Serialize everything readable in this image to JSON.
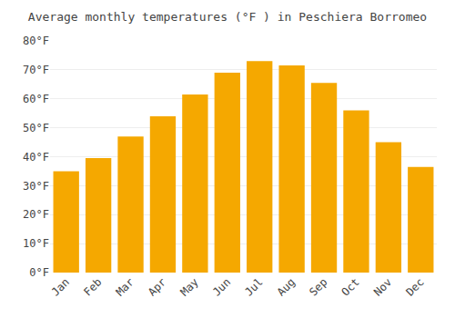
{
  "chart_data": {
    "type": "bar",
    "title": "Average monthly temperatures (°F ) in Peschiera Borromeo",
    "categories": [
      "Jan",
      "Feb",
      "Mar",
      "Apr",
      "May",
      "Jun",
      "Jul",
      "Aug",
      "Sep",
      "Oct",
      "Nov",
      "Dec"
    ],
    "values": [
      35,
      39.5,
      47,
      54,
      61.5,
      69,
      73,
      71.5,
      65.5,
      56,
      45,
      36.5
    ],
    "color": "#F5A800",
    "ylim": [
      0,
      80
    ],
    "yticks": [
      {
        "value": 0,
        "label": "0°F"
      },
      {
        "value": 10,
        "label": "10°F"
      },
      {
        "value": 20,
        "label": "20°F"
      },
      {
        "value": 30,
        "label": "30°F"
      },
      {
        "value": 40,
        "label": "40°F"
      },
      {
        "value": 50,
        "label": "50°F"
      },
      {
        "value": 60,
        "label": "60°F"
      },
      {
        "value": 70,
        "label": "70°F"
      },
      {
        "value": 80,
        "label": "80°F"
      }
    ],
    "grid": true
  }
}
